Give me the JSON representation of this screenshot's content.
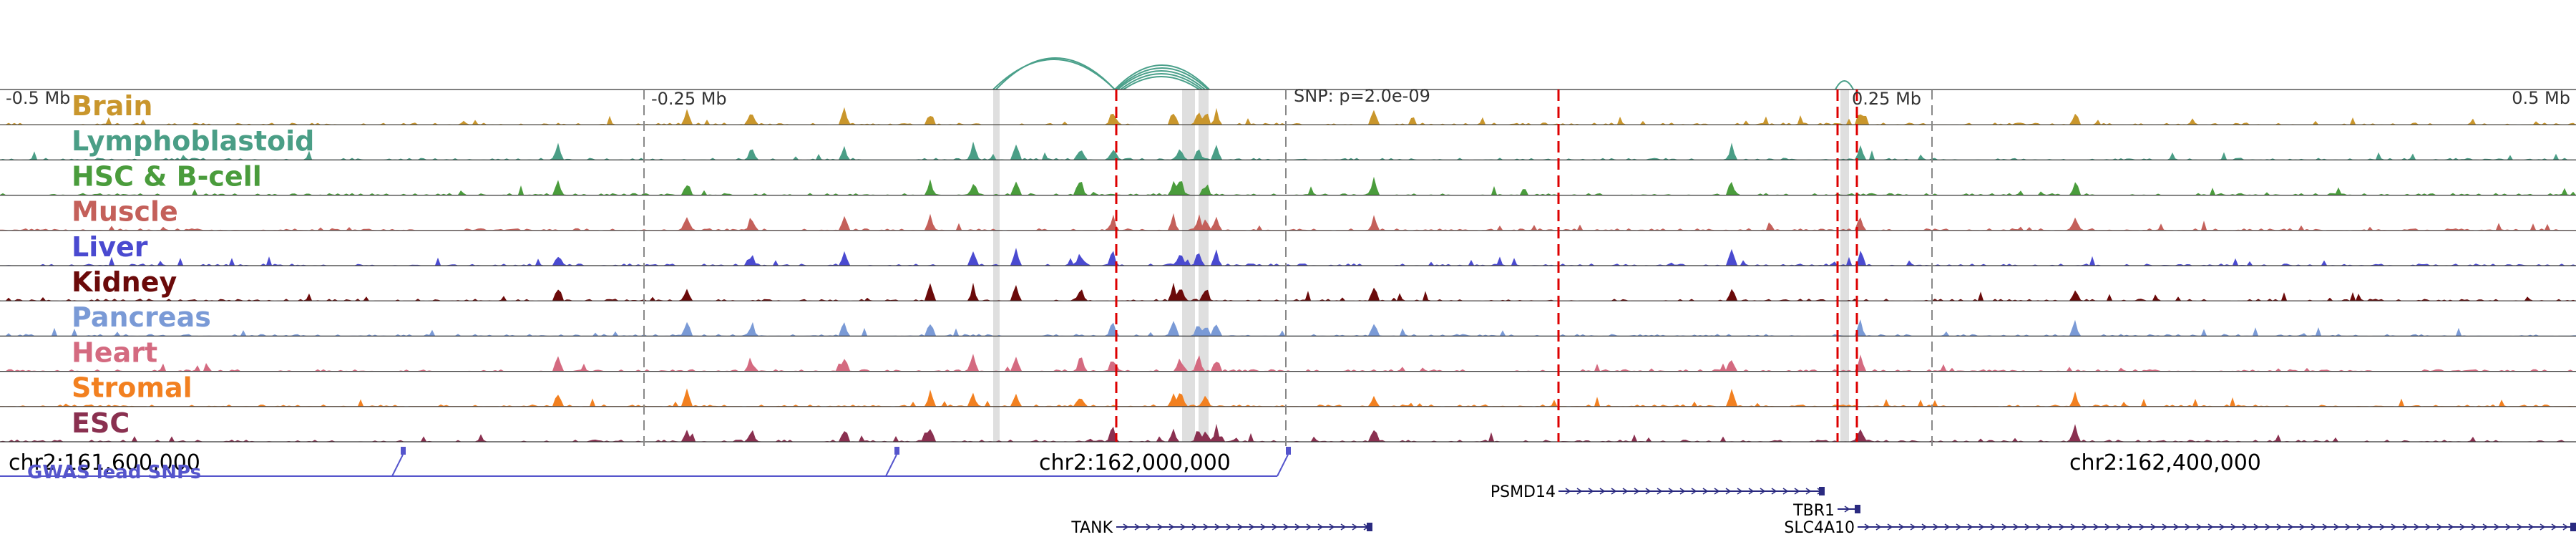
{
  "browser": {
    "scale_labels": [
      "-0.5 Mb",
      "-0.25 Mb",
      "SNP: p=2.0e-09",
      "0.25 Mb",
      "0.5 Mb"
    ],
    "coordinates": [
      "chr2:161,600,000",
      "chr2:162,000,000",
      "chr2:162,400,000"
    ],
    "gwas_label": "GWAS lead SNPs",
    "colors": {
      "gwas": "#5555cc",
      "loop": "#4aa08a",
      "highlight": "#d9d9d9",
      "snp_line": "#dd0000",
      "track_border": "#333333"
    }
  },
  "tracks": [
    {
      "name": "Brain",
      "color": "#c9962c"
    },
    {
      "name": "Lymphoblastoid",
      "color": "#4a9e86"
    },
    {
      "name": "HSC & B-cell",
      "color": "#4a9c3c"
    },
    {
      "name": "Muscle",
      "color": "#c4605a"
    },
    {
      "name": "Liver",
      "color": "#4a4ad0"
    },
    {
      "name": "Kidney",
      "color": "#6b0a0a"
    },
    {
      "name": "Pancreas",
      "color": "#7a9ad6"
    },
    {
      "name": "Heart",
      "color": "#d46a80"
    },
    {
      "name": "Stromal",
      "color": "#f28020"
    },
    {
      "name": "ESC",
      "color": "#8a3050"
    }
  ],
  "genes": [
    {
      "name": "PSMD14",
      "strand": "+"
    },
    {
      "name": "TBR1",
      "strand": "+"
    },
    {
      "name": "TANK",
      "strand": "+"
    },
    {
      "name": "SLC4A10",
      "strand": "+"
    }
  ]
}
